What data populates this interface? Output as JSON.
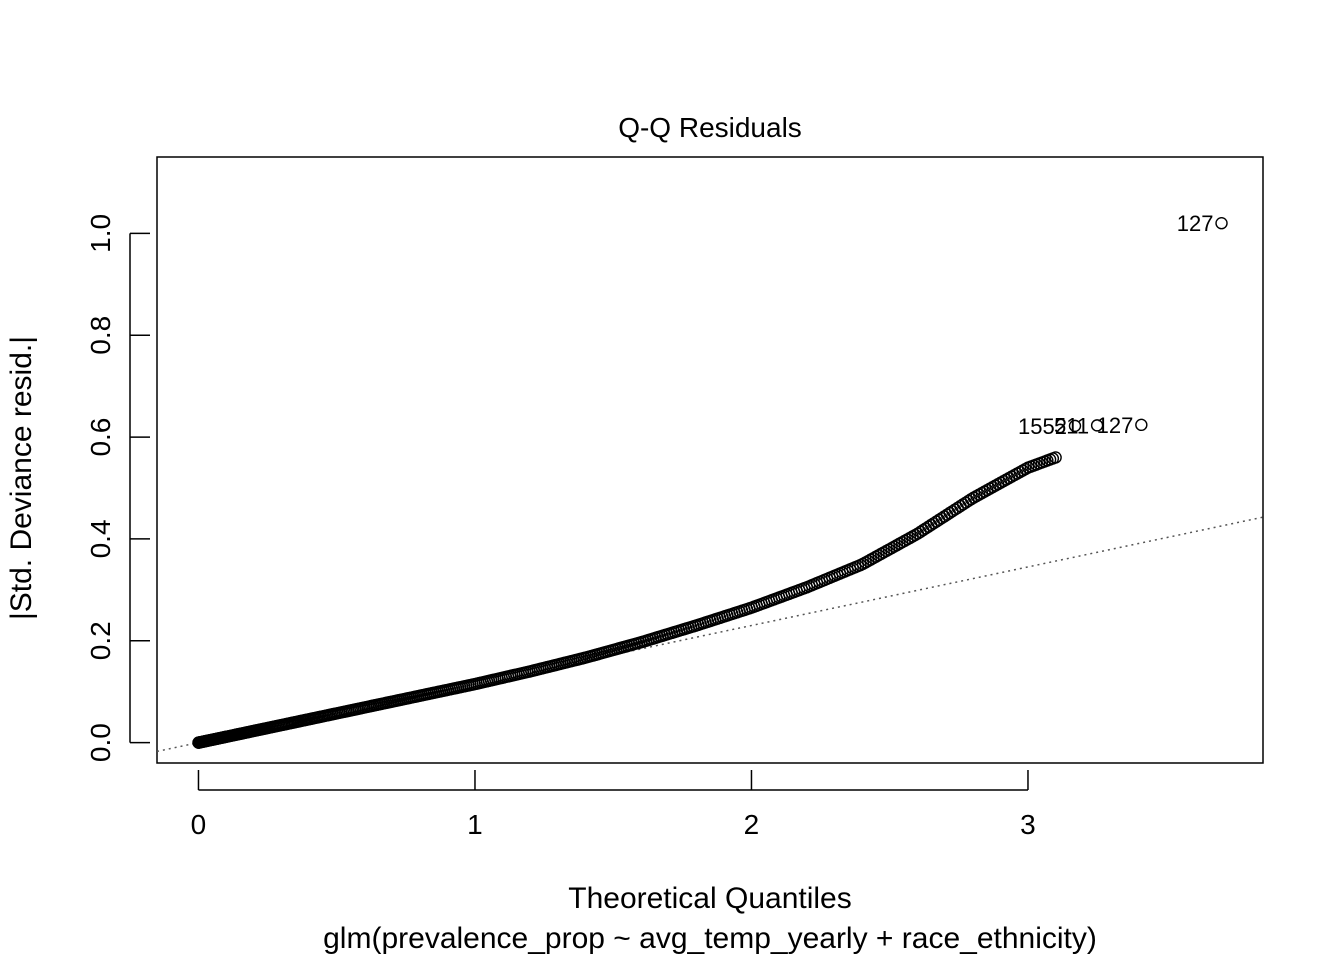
{
  "chart_data": {
    "type": "scatter",
    "title": "Q-Q Residuals",
    "xlabel": "Theoretical Quantiles",
    "ylabel": "|Std. Deviance resid.|",
    "subtitle": "glm(prevalence_prop ~ avg_temp_yearly + race_ethnicity)",
    "xlim": [
      -0.15,
      3.85
    ],
    "ylim": [
      -0.04,
      1.15
    ],
    "x_ticks": [
      0,
      1,
      2,
      3
    ],
    "x_tick_labels": [
      "0",
      "1",
      "2",
      "3"
    ],
    "y_ticks": [
      0.0,
      0.2,
      0.4,
      0.6,
      0.8,
      1.0
    ],
    "y_tick_labels": [
      "0.0",
      "0.2",
      "0.4",
      "0.6",
      "0.8",
      "1.0"
    ],
    "reference_line": {
      "style": "dotted",
      "color": "#555555",
      "slope": 0.115,
      "intercept": 0.0
    },
    "points_curve": [
      [
        0.0,
        0.0
      ],
      [
        0.2,
        0.023
      ],
      [
        0.4,
        0.046
      ],
      [
        0.6,
        0.069
      ],
      [
        0.8,
        0.092
      ],
      [
        1.0,
        0.115
      ],
      [
        1.2,
        0.14
      ],
      [
        1.4,
        0.167
      ],
      [
        1.6,
        0.197
      ],
      [
        1.8,
        0.23
      ],
      [
        2.0,
        0.265
      ],
      [
        2.2,
        0.305
      ],
      [
        2.4,
        0.35
      ],
      [
        2.5,
        0.38
      ],
      [
        2.6,
        0.41
      ],
      [
        2.7,
        0.445
      ],
      [
        2.8,
        0.48
      ],
      [
        2.9,
        0.51
      ],
      [
        3.0,
        0.54
      ],
      [
        3.1,
        0.56
      ]
    ],
    "points_count": 420,
    "labeled_points": [
      {
        "label": "1552",
        "x": 3.17,
        "y": 0.622
      },
      {
        "label": "511",
        "x": 3.25,
        "y": 0.623
      },
      {
        "label": "127",
        "x": 3.41,
        "y": 0.624
      },
      {
        "label": "127",
        "x": 3.7,
        "y": 1.02
      }
    ],
    "point_style": "open-circle",
    "point_color": "#000000"
  }
}
